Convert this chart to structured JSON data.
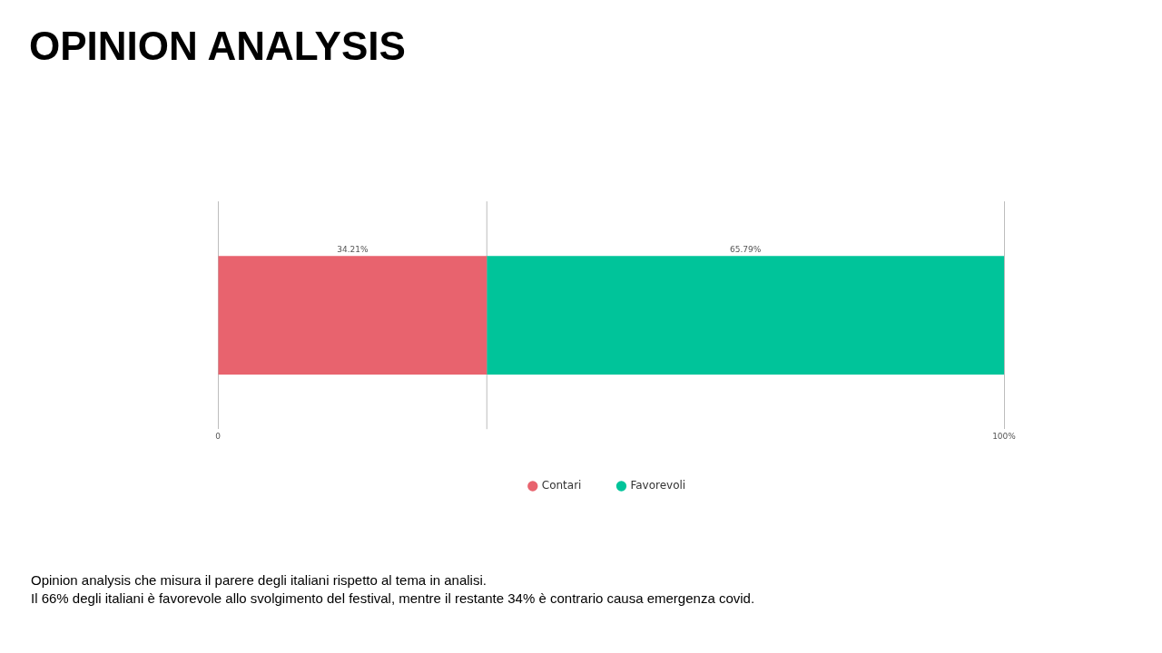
{
  "chart_data": {
    "type": "bar",
    "title": "OPINION ANALYSIS",
    "orientation": "horizontal",
    "stacked": true,
    "categories": [
      null
    ],
    "series": [
      {
        "name": "Contari",
        "color": "#e8636e",
        "values": [
          34.21
        ],
        "value_labels": [
          "34.21%"
        ]
      },
      {
        "name": "Favorevoli",
        "color": "#00c49a",
        "values": [
          65.79
        ],
        "value_labels": [
          "65.79%"
        ]
      }
    ],
    "xlim": [
      0,
      100
    ],
    "xticks": [
      0,
      {
        "value": 100,
        "label": "100%"
      }
    ],
    "grid": "x",
    "legend": "bottom",
    "ref_lines": [
      {
        "axis": "x",
        "value": 34.21,
        "label": null,
        "color": "#bdbdbd"
      }
    ],
    "annotations": [
      "Opinion analysis che misura il parere degli italiani rispetto al tema in analisi.",
      "Il 66% degli italiani è favorevole allo svolgimento del festival, mentre il restante 34% è contrario causa emergenza covid."
    ]
  }
}
